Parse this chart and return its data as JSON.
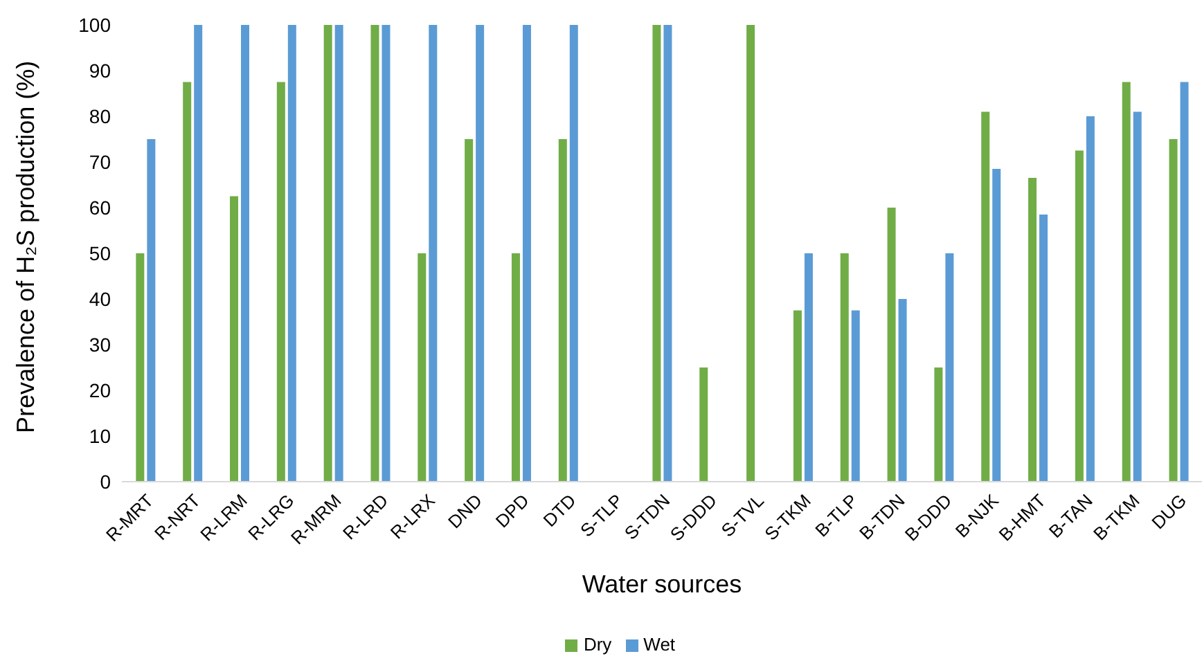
{
  "chart_data": {
    "type": "bar",
    "xlabel": "Water sources",
    "ylabel": "Prevalence of H₂S production (%)",
    "categories": [
      "R-MRT",
      "R-NRT",
      "R-LRM",
      "R-LRG",
      "R-MRM",
      "R-LRD",
      "R-LRX",
      "DND",
      "DPD",
      "DTD",
      "S-TLP",
      "S-TDN",
      "S-DDD",
      "S-TVL",
      "S-TKM",
      "B-TLP",
      "B-TDN",
      "B-DDD",
      "B-NJK",
      "B-HMT",
      "B-TAN",
      "B-TKM",
      "DUG"
    ],
    "series": [
      {
        "name": "Dry",
        "color": "#70ad47",
        "values": [
          50,
          87.5,
          62.5,
          87.5,
          100,
          100,
          50,
          75,
          50,
          75,
          0,
          100,
          25,
          100,
          37.5,
          50,
          60,
          25,
          81,
          66.5,
          72.5,
          87.5,
          75
        ]
      },
      {
        "name": "Wet",
        "color": "#5b9bd5",
        "values": [
          75,
          100,
          100,
          100,
          100,
          100,
          100,
          100,
          100,
          100,
          0,
          100,
          0,
          0,
          50,
          37.5,
          40,
          50,
          68.5,
          58.5,
          80,
          81,
          87.5
        ]
      }
    ],
    "ylim": [
      0,
      100
    ],
    "yticks": [
      0,
      10,
      20,
      30,
      40,
      50,
      60,
      70,
      80,
      90,
      100
    ],
    "grid": false,
    "legend": "bottom"
  }
}
